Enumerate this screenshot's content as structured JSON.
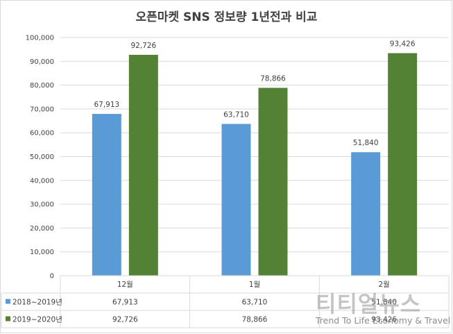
{
  "chart_data": {
    "type": "bar",
    "title": "오픈마켓 SNS 정보량 1년전과 비교",
    "categories": [
      "12월",
      "1월",
      "2월"
    ],
    "series": [
      {
        "name": "2018~2019년",
        "values": [
          67913,
          63710,
          51840
        ],
        "color": "#5b9bd5"
      },
      {
        "name": "2019~2020년",
        "values": [
          92726,
          78866,
          93426
        ],
        "color": "#548235"
      }
    ],
    "ylim": [
      0,
      100000
    ],
    "yticks": [
      "0",
      "10,000",
      "20,000",
      "30,000",
      "40,000",
      "50,000",
      "60,000",
      "70,000",
      "80,000",
      "90,000",
      "100,000"
    ],
    "grid": true,
    "legend": "data-table-left",
    "data_table": [
      [
        "67,913",
        "63,710",
        "51,840"
      ],
      [
        "92,726",
        "78,866",
        "93,426"
      ]
    ],
    "data_labels": [
      [
        "67,913",
        "63,710",
        "51,840"
      ],
      [
        "92,726",
        "78,866",
        "93,426"
      ]
    ]
  },
  "watermark": {
    "title": "티티얼뉴스",
    "subtitle": "Trend To Life Economy & Travel"
  }
}
